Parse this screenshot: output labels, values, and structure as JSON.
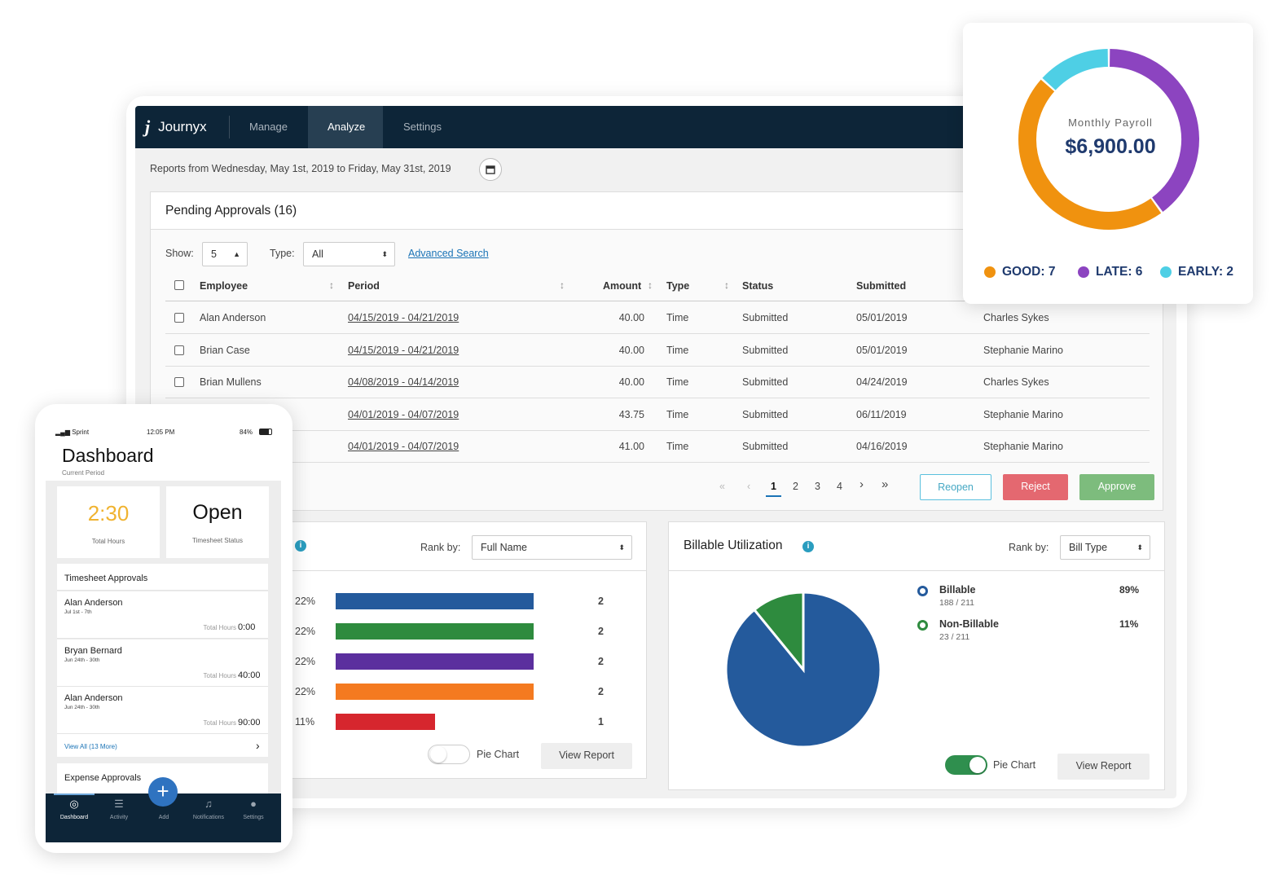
{
  "app": {
    "logo_text": "Journyx",
    "nav": [
      "Manage",
      "Analyze",
      "Settings"
    ],
    "report_range": "Reports from Wednesday, May 1st, 2019 to Friday, May 31st, 2019"
  },
  "pending": {
    "title": "Pending Approvals (16)",
    "show_label": "Show:",
    "show_value": "5",
    "type_label": "Type:",
    "type_value": "All",
    "advanced_search": "Advanced Search",
    "columns": [
      "Employee",
      "Period",
      "Amount",
      "Type",
      "Status",
      "Submitted"
    ],
    "rows": [
      {
        "employee": "Alan Anderson",
        "period": "04/15/2019 - 04/21/2019",
        "amount": "40.00",
        "type": "Time",
        "status": "Submitted",
        "submitted": "05/01/2019",
        "approver": "Charles Sykes"
      },
      {
        "employee": "Brian Case",
        "period": "04/15/2019 - 04/21/2019",
        "amount": "40.00",
        "type": "Time",
        "status": "Submitted",
        "submitted": "05/01/2019",
        "approver": "Stephanie Marino"
      },
      {
        "employee": "Brian Mullens",
        "period": "04/08/2019 - 04/14/2019",
        "amount": "40.00",
        "type": "Time",
        "status": "Submitted",
        "submitted": "04/24/2019",
        "approver": "Charles Sykes"
      },
      {
        "employee": "",
        "period": "04/01/2019 - 04/07/2019",
        "amount": "43.75",
        "type": "Time",
        "status": "Submitted",
        "submitted": "06/11/2019",
        "approver": "Stephanie Marino"
      },
      {
        "employee": "",
        "period": "04/01/2019 - 04/07/2019",
        "amount": "41.00",
        "type": "Time",
        "status": "Submitted",
        "submitted": "04/16/2019",
        "approver": "Stephanie Marino"
      }
    ],
    "pages": [
      "1",
      "2",
      "3",
      "4"
    ],
    "current_page": "1",
    "reopen": "Reopen",
    "reject": "Reject",
    "approve": "Approve"
  },
  "rank_card": {
    "rank_label": "Rank by:",
    "rank_value": "Full Name",
    "bars": [
      {
        "pct": "22%",
        "count": "2",
        "value": 2,
        "color": "#245a9c"
      },
      {
        "pct": "22%",
        "count": "2",
        "value": 2,
        "color": "#2e8b3e"
      },
      {
        "pct": "22%",
        "count": "2",
        "value": 2,
        "color": "#5b2f9e"
      },
      {
        "pct": "22%",
        "count": "2",
        "value": 2,
        "color": "#f47a20"
      },
      {
        "pct": "11%",
        "count": "1",
        "value": 1,
        "color": "#d6262e"
      }
    ],
    "toggle_label": "Pie Chart",
    "toggle_on": false,
    "view_report": "View Report"
  },
  "billable": {
    "title": "Billable Utilization",
    "rank_label": "Rank by:",
    "rank_value": "Bill Type",
    "legend": [
      {
        "name": "Billable",
        "sub": "188 / 211",
        "pct": "89%",
        "value": 188,
        "color": "#245a9c"
      },
      {
        "name": "Non-Billable",
        "sub": "23 / 211",
        "pct": "11%",
        "value": 23,
        "color": "#2e8b3e"
      }
    ],
    "toggle_label": "Pie Chart",
    "toggle_on": true,
    "view_report": "View Report"
  },
  "payroll": {
    "label": "Monthly Payroll",
    "amount": "$6,900.00",
    "segments": [
      {
        "name": "GOOD",
        "label": "GOOD: 7",
        "value": 7,
        "color": "#f0920f"
      },
      {
        "name": "LATE",
        "label": "LATE: 6",
        "value": 6,
        "color": "#8c44c0"
      },
      {
        "name": "EARLY",
        "label": "EARLY: 2",
        "value": 2,
        "color": "#4ecfe5"
      }
    ]
  },
  "phone": {
    "carrier": "Sprint",
    "time": "12:05 PM",
    "battery": "84%",
    "title": "Dashboard",
    "subtitle": "Current Period",
    "hours_value": "2:30",
    "hours_label": "Total Hours",
    "status_value": "Open",
    "status_label": "Timesheet Status",
    "approvals_title": "Timesheet Approvals",
    "approvals": [
      {
        "name": "Alan Anderson",
        "dates": "Jul 1st - 7th",
        "hours_label": "Total Hours",
        "hours": "0:00"
      },
      {
        "name": "Bryan Bernard",
        "dates": "Jun 24th - 30th",
        "hours_label": "Total Hours",
        "hours": "40:00"
      },
      {
        "name": "Alan Anderson",
        "dates": "Jun 24th - 30th",
        "hours_label": "Total Hours",
        "hours": "90:00"
      }
    ],
    "view_all": "View All (13 More)",
    "expense_title": "Expense Approvals",
    "tabs": [
      "Dashboard",
      "Activity",
      "Add",
      "Notifications",
      "Settings"
    ]
  }
}
